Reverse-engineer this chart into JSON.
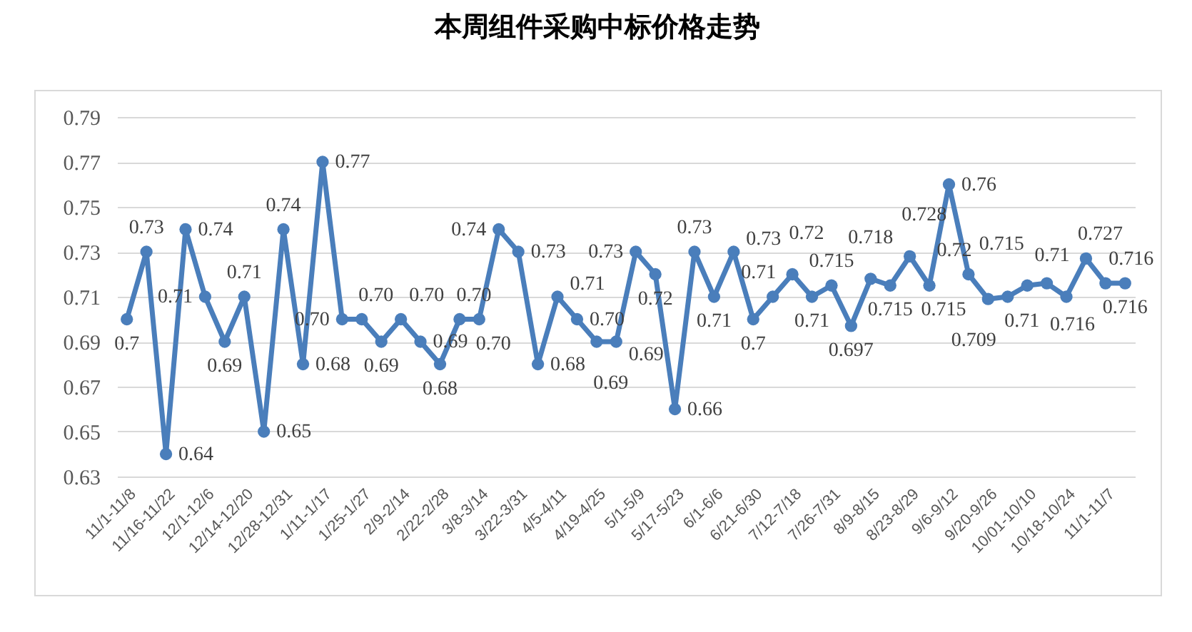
{
  "chart_data": {
    "type": "line",
    "title": "本周组件采购中标价格走势",
    "categories": [
      "11/1-11/8",
      null,
      "11/16-11/22",
      null,
      "12/1-12/6",
      null,
      "12/14-12/20",
      null,
      "12/28-12/31",
      null,
      "1/11-1/17",
      null,
      "1/25-1/27",
      null,
      "2/9-2/14",
      null,
      "2/22-2/28",
      null,
      "3/8-3/14",
      null,
      "3/22-3/31",
      null,
      "4/5-4/11",
      null,
      "4/19-4/25",
      null,
      "5/1-5/9",
      null,
      "5/17-5/23",
      null,
      "6/1-6/6",
      null,
      "6/21-6/30",
      null,
      "7/12-7/18",
      null,
      "7/26-7/31",
      null,
      "8/9-8/15",
      null,
      "8/23-8/29",
      null,
      "9/6-9/12",
      null,
      "9/20-9/26",
      null,
      "10/01-10/10",
      null,
      "10/18-10/24",
      null,
      "11/1-11/7",
      null
    ],
    "values": [
      0.7,
      0.73,
      0.64,
      0.74,
      0.71,
      0.69,
      0.71,
      0.65,
      0.74,
      0.68,
      0.77,
      0.7,
      0.7,
      0.69,
      0.7,
      0.69,
      0.68,
      0.7,
      0.7,
      0.74,
      0.73,
      0.68,
      0.71,
      0.7,
      0.69,
      0.69,
      0.73,
      0.72,
      0.66,
      0.73,
      0.71,
      0.73,
      0.7,
      0.71,
      0.72,
      0.71,
      0.715,
      0.697,
      0.718,
      0.715,
      0.728,
      0.715,
      0.76,
      0.72,
      0.709,
      0.71,
      0.715,
      0.716,
      0.71,
      0.727,
      0.716,
      0.716
    ],
    "value_labels": [
      "0.7",
      "0.73",
      "0.64",
      "0.74",
      "0.71",
      "0.69",
      "0.71",
      "0.65",
      "0.74",
      "0.68",
      "0.77",
      "0.70",
      "0.70",
      "0.69",
      "0.70",
      "0.69",
      "0.68",
      "0.70",
      "0.70",
      "0.74",
      "0.73",
      "0.68",
      "0.71",
      "0.70",
      "0.69",
      "0.69",
      "0.73",
      "0.72",
      "0.66",
      "0.73",
      "0.71",
      "0.73",
      "0.7",
      "0.71",
      "0.72",
      "0.71",
      "0.715",
      "0.697",
      "0.718",
      "0.715",
      "0.728",
      "0.715",
      "0.76",
      "0.72",
      "0.709",
      "0.71",
      "0.715",
      "0.716",
      "0.71",
      "0.727",
      "0.716",
      "0.716"
    ],
    "color": "#4a7ebb",
    "ylim": [
      0.63,
      0.79
    ],
    "yticks": [
      0.63,
      0.65,
      0.67,
      0.69,
      0.71,
      0.73,
      0.75,
      0.77,
      0.79
    ],
    "grid": "y",
    "marker": "circle"
  }
}
